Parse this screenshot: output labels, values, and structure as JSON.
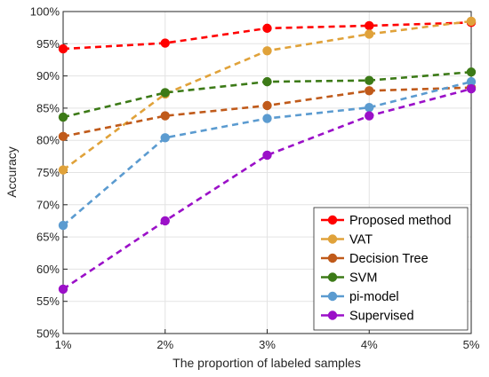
{
  "chart_data": {
    "type": "line",
    "title": "",
    "xlabel": "The proportion of labeled samples",
    "ylabel": "Accuracy",
    "categories": [
      "1%",
      "2%",
      "3%",
      "4%",
      "5%"
    ],
    "y_ticks": [
      "50%",
      "55%",
      "60%",
      "65%",
      "70%",
      "75%",
      "80%",
      "85%",
      "90%",
      "95%",
      "100%"
    ],
    "ylim": [
      50,
      100
    ],
    "grid": true,
    "legend_position": "bottom-right",
    "series": [
      {
        "name": "Proposed method",
        "color": "#ff0000",
        "values": [
          94.2,
          95.1,
          97.4,
          97.8,
          98.3
        ]
      },
      {
        "name": "VAT",
        "color": "#e0a23a",
        "values": [
          75.4,
          87.2,
          93.9,
          96.5,
          98.5
        ]
      },
      {
        "name": "Decision Tree",
        "color": "#c05a1a",
        "values": [
          80.6,
          83.8,
          85.4,
          87.7,
          88.2
        ]
      },
      {
        "name": "SVM",
        "color": "#3c7a17",
        "values": [
          83.6,
          87.4,
          89.1,
          89.3,
          90.6
        ]
      },
      {
        "name": "pi-model",
        "color": "#5b9bd0",
        "values": [
          66.8,
          80.4,
          83.4,
          85.1,
          89.1
        ]
      },
      {
        "name": "Supervised",
        "color": "#9b10c8",
        "values": [
          56.9,
          67.5,
          77.7,
          83.8,
          88.0
        ]
      }
    ]
  }
}
